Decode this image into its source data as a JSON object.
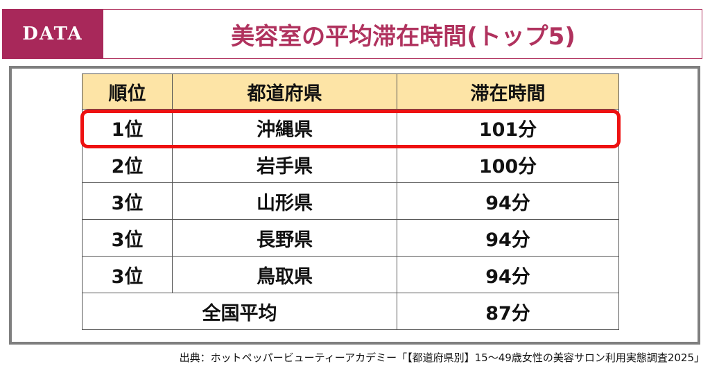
{
  "header": {
    "tag": "DATA",
    "title": "美容室の平均滞在時間(トップ5)"
  },
  "table": {
    "columns": [
      "順位",
      "都道府県",
      "滞在時間"
    ],
    "rows": [
      {
        "rank": "1位",
        "prefecture": "沖縄県",
        "time": "101分"
      },
      {
        "rank": "2位",
        "prefecture": "岩手県",
        "time": "100分"
      },
      {
        "rank": "3位",
        "prefecture": "山形県",
        "time": "94分"
      },
      {
        "rank": "3位",
        "prefecture": "長野県",
        "time": "94分"
      },
      {
        "rank": "3位",
        "prefecture": "鳥取県",
        "time": "94分"
      }
    ],
    "average": {
      "label": "全国平均",
      "time": "87分"
    }
  },
  "colors": {
    "accent": "#a8285a",
    "header_fill": "#fde4a6",
    "highlight": "#ee1111"
  },
  "source": "出典：ホットペッパービューティーアカデミー「【都道府県別】15～49歳女性の美容サロン利用実態調査2025」"
}
